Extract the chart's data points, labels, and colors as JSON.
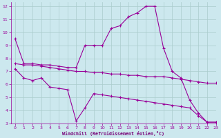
{
  "bg_color": "#cce8ee",
  "line_color": "#990099",
  "grid_color": "#aacccc",
  "xlabel": "Windchill (Refroidissement éolien,°C)",
  "xlabel_color": "#770077",
  "xlim": [
    -0.5,
    23
  ],
  "ylim": [
    3,
    12.3
  ],
  "yticks": [
    3,
    4,
    5,
    6,
    7,
    8,
    9,
    10,
    11,
    12
  ],
  "xticks": [
    0,
    1,
    2,
    3,
    4,
    5,
    6,
    7,
    8,
    9,
    10,
    11,
    12,
    13,
    14,
    15,
    16,
    17,
    18,
    19,
    20,
    21,
    22,
    23
  ],
  "line1_x": [
    0,
    1,
    2,
    3,
    4,
    5,
    6,
    7,
    8,
    9,
    10,
    11,
    12,
    13,
    14,
    15,
    16,
    17,
    18,
    19,
    20,
    21,
    22,
    23
  ],
  "line1_y": [
    9.5,
    7.6,
    7.6,
    7.5,
    7.5,
    7.4,
    7.3,
    7.3,
    9.0,
    9.0,
    9.0,
    10.3,
    10.5,
    11.2,
    11.5,
    12.0,
    12.0,
    8.8,
    7.0,
    6.5,
    4.8,
    3.8,
    3.1,
    3.1
  ],
  "line2_x": [
    0,
    1,
    2,
    3,
    4,
    5,
    6,
    7,
    8,
    9,
    10,
    11,
    12,
    13,
    14,
    15,
    16,
    17,
    18,
    19,
    20,
    21,
    22,
    23
  ],
  "line2_y": [
    7.6,
    7.5,
    7.5,
    7.4,
    7.3,
    7.2,
    7.1,
    7.0,
    7.0,
    6.9,
    6.9,
    6.8,
    6.8,
    6.7,
    6.7,
    6.6,
    6.6,
    6.6,
    6.5,
    6.4,
    6.3,
    6.2,
    6.1,
    6.1
  ],
  "line3_x": [
    0,
    1,
    2,
    3,
    4,
    5,
    6,
    7,
    8,
    9,
    10,
    11,
    12,
    13,
    14,
    15,
    16,
    17,
    18,
    19,
    20,
    21,
    22,
    23
  ],
  "line3_y": [
    7.2,
    6.5,
    6.3,
    6.5,
    5.8,
    5.7,
    5.6,
    3.2,
    4.2,
    5.3,
    5.2,
    5.1,
    5.0,
    4.9,
    4.8,
    4.7,
    4.6,
    4.5,
    4.4,
    4.3,
    4.2,
    3.6,
    3.1,
    3.1
  ]
}
